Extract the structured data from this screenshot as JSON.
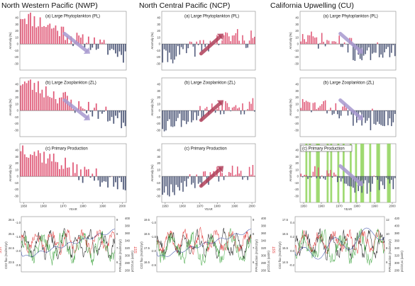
{
  "regions": [
    {
      "id": "nwp",
      "title": "North Western Pacific (NWP)",
      "panels": [
        {
          "label": "(a) Large Phytoplankton (PL)",
          "series_seed": 11,
          "profile": "early_high",
          "arrow": "down",
          "green_bands": false
        },
        {
          "label": "(b) Large Zooplankton (ZL)",
          "series_seed": 23,
          "profile": "early_high",
          "arrow": "down",
          "green_bands": false
        },
        {
          "label": "(c) Primary Production",
          "series_seed": 37,
          "profile": "early_high",
          "arrow": null,
          "green_bands": false
        }
      ]
    },
    {
      "id": "ncp",
      "title": "North Central Pacific (NCP)",
      "panels": [
        {
          "label": "(a) Large Phytoplankton (PL)",
          "series_seed": 41,
          "profile": "late_high",
          "arrow": "up",
          "green_bands": false
        },
        {
          "label": "(b) Large Zooplankton (ZL)",
          "series_seed": 53,
          "profile": "late_high",
          "arrow": "up",
          "green_bands": false
        },
        {
          "label": "(c) Primary Production",
          "series_seed": 67,
          "profile": "late_high",
          "arrow": "up",
          "green_bands": false
        }
      ]
    },
    {
      "id": "cu",
      "title": "California Upwelling (CU)",
      "panels": [
        {
          "label": "(a) Large Phytoplankton (PL)",
          "series_seed": 71,
          "profile": "early_mid",
          "arrow": "down",
          "green_bands": false
        },
        {
          "label": "(b) Large Zooplankton (ZL)",
          "series_seed": 83,
          "profile": "early_mid",
          "arrow": "down",
          "green_bands": false
        },
        {
          "label": "(c) Primary Production",
          "series_seed": 97,
          "profile": "early_mid",
          "arrow": "down",
          "green_bands": true
        }
      ]
    }
  ],
  "common": {
    "y_axis_label": "Anomaly (%)",
    "x_axis_label": "YEAR",
    "x_ticks": [
      "1950",
      "1960",
      "1970",
      "1980",
      "1990",
      "2000"
    ],
    "y_ticks": [
      "40",
      "30",
      "20",
      "10",
      "0",
      "-10",
      "-20",
      "-30"
    ]
  },
  "bottom_charts": [
    {
      "id": "nwp",
      "left_axes": [
        "CO2 flux (mol/m2/yr)",
        "SST"
      ],
      "right_axes": [
        "P.Production (mol/m2/yr)",
        "pCO2,oc (uatm)"
      ],
      "left_ticks_a": [
        "26.5",
        "25.5",
        "24.5",
        "23.5"
      ],
      "left_ticks_b": [
        "-1.0",
        "-1.5",
        "-2.0",
        "-2.5"
      ],
      "right_ticks_a": [
        "9",
        "8",
        "7",
        "6"
      ],
      "right_ticks_b": [
        "400",
        "380",
        "360",
        "340",
        "320",
        "300",
        "280",
        "260"
      ]
    },
    {
      "id": "ncp",
      "left_axes": [
        "CO2 flux (mol/m2/yr)",
        "SST"
      ],
      "right_axes": [
        "P.Production (mol/m2/yr)",
        "pCO2,oc (uatm)"
      ],
      "left_ticks_a": [
        "19.5",
        "18.5",
        "17.5",
        "16.5"
      ],
      "left_ticks_b": [
        "-1.0",
        "-1.5",
        "-2.0",
        "-2.5"
      ],
      "right_ticks_a": [
        "9",
        "8",
        "7",
        "6"
      ],
      "right_ticks_b": [
        "400",
        "380",
        "360",
        "340",
        "320",
        "300",
        "280",
        "260"
      ]
    },
    {
      "id": "cu",
      "left_axes": [
        "CO2 flux (mol/m2/yr)",
        "SST"
      ],
      "right_axes": [
        "P.Production (mol/m2/yr)",
        "pCO2,oc (uatm)"
      ],
      "left_ticks_a": [
        "17.5",
        "16.5",
        "15.5",
        "14.5"
      ],
      "left_ticks_b": [
        "0.4",
        "0.2",
        "0.0",
        "-0.2"
      ],
      "right_ticks_a": [
        "12",
        "10",
        "8",
        "6"
      ],
      "right_ticks_b": [
        "420",
        "400",
        "380",
        "360",
        "340",
        "320",
        "300",
        "280"
      ]
    }
  ],
  "colors": {
    "positive_bar": "#e05a78",
    "negative_bar": "#505a7a",
    "arrow_down": "#a89ad0",
    "arrow_up": "#b0405a",
    "green_band": "#8fd35a",
    "co2": "#111111",
    "sst": "#e03030",
    "pp": "#3aa23a",
    "pco2": "#2a3fa0",
    "frame": "#888888"
  },
  "chart_data": {
    "type": "bar",
    "title": "",
    "xlabel": "YEAR",
    "ylabel": "Anomaly (%)",
    "xlim": [
      1948,
      2002
    ],
    "ylim": [
      -40,
      50
    ],
    "note_series": [
      "Large Phytoplankton (PL)",
      "Large Zooplankton (ZL)",
      "Primary Production"
    ]
  }
}
